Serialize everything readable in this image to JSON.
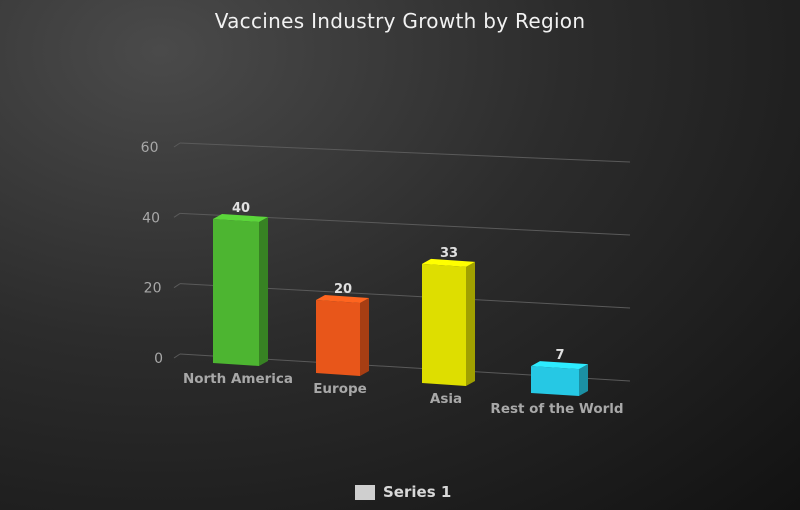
{
  "chart_data": {
    "type": "bar",
    "title": "Vaccines Industry Growth by Region",
    "categories": [
      "North America",
      "Europe",
      "Asia",
      "Rest of the World"
    ],
    "series": [
      {
        "name": "Series 1",
        "values": [
          40,
          20,
          33,
          7
        ]
      }
    ],
    "data_labels": [
      "40",
      "20",
      "33",
      "7"
    ],
    "y_ticks": [
      "0",
      "20",
      "40",
      "60"
    ],
    "ylim": [
      0,
      60
    ],
    "grid": true,
    "legend_position": "bottom",
    "three_d": true,
    "colors": [
      "#4db531",
      "#e8561a",
      "#dede00",
      "#26c8e4"
    ],
    "legend_swatch_color": "#cfcfcf"
  }
}
